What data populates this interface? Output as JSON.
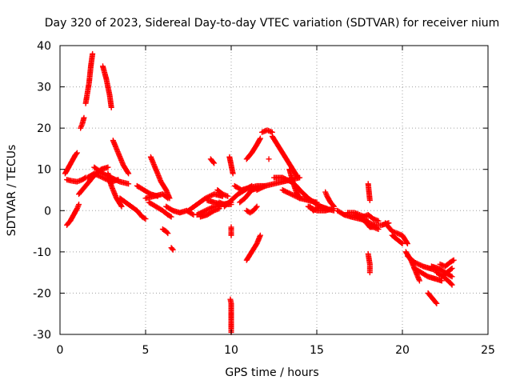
{
  "chart_data": {
    "type": "scatter",
    "title": "Day 320 of 2023, Sidereal Day-to-day VTEC variation (SDTVAR) for receiver nium",
    "xlabel": "GPS time / hours",
    "ylabel": "SDTVAR / TECUs",
    "xlim": [
      0,
      25
    ],
    "ylim": [
      -30,
      40
    ],
    "xticks": [
      0,
      5,
      10,
      15,
      20,
      25
    ],
    "yticks": [
      -30,
      -20,
      -10,
      0,
      10,
      20,
      30,
      40
    ],
    "grid": true,
    "marker": "+",
    "color": "#ff0000",
    "series": [
      {
        "name": "nium",
        "tracks": [
          [
            [
              0.4,
              -3.5
            ],
            [
              0.6,
              -2.5
            ],
            [
              0.8,
              -1
            ],
            [
              1.0,
              0.5
            ],
            [
              1.1,
              1.5
            ]
          ],
          [
            [
              0.3,
              9
            ],
            [
              0.5,
              10.5
            ],
            [
              0.7,
              12
            ],
            [
              0.9,
              13.5
            ],
            [
              1.0,
              14
            ]
          ],
          [
            [
              0.4,
              7.5
            ],
            [
              0.7,
              7.2
            ],
            [
              1.0,
              7
            ],
            [
              1.3,
              7.5
            ],
            [
              1.5,
              8
            ]
          ],
          [
            [
              1.1,
              4
            ],
            [
              1.4,
              5.5
            ],
            [
              1.7,
              7
            ],
            [
              2.0,
              8.5
            ],
            [
              2.4,
              10
            ],
            [
              2.8,
              10.5
            ]
          ],
          [
            [
              1.6,
              8
            ],
            [
              2.0,
              9
            ],
            [
              2.5,
              8
            ],
            [
              3.0,
              7
            ],
            [
              3.4,
              7.5
            ]
          ],
          [
            [
              1.2,
              20
            ],
            [
              1.3,
              21
            ],
            [
              1.4,
              22.5
            ]
          ],
          [
            [
              1.5,
              26
            ],
            [
              1.7,
              31
            ],
            [
              1.8,
              35
            ],
            [
              1.9,
              38
            ]
          ],
          [
            [
              2.5,
              35
            ],
            [
              2.7,
              32
            ],
            [
              2.9,
              28
            ],
            [
              3.0,
              25
            ]
          ],
          [
            [
              2.0,
              10.5
            ],
            [
              2.5,
              9
            ],
            [
              3.0,
              8
            ],
            [
              3.5,
              7
            ],
            [
              4.0,
              6.5
            ]
          ],
          [
            [
              2.8,
              9
            ],
            [
              3.0,
              6
            ],
            [
              3.3,
              3
            ],
            [
              3.6,
              1
            ]
          ],
          [
            [
              3.1,
              17
            ],
            [
              3.4,
              14
            ],
            [
              3.7,
              11
            ],
            [
              4.0,
              9
            ]
          ],
          [
            [
              3.5,
              3
            ],
            [
              4.0,
              1.5
            ],
            [
              4.5,
              0
            ],
            [
              4.8,
              -1.5
            ],
            [
              5.0,
              -2
            ]
          ],
          [
            [
              4.5,
              6
            ],
            [
              4.9,
              5
            ],
            [
              5.3,
              4
            ],
            [
              5.7,
              3.5
            ]
          ],
          [
            [
              5.0,
              3
            ],
            [
              5.5,
              3.5
            ],
            [
              6.0,
              4
            ],
            [
              6.3,
              3
            ]
          ],
          [
            [
              5.2,
              2
            ],
            [
              5.6,
              1
            ],
            [
              6.0,
              0
            ],
            [
              6.3,
              -1
            ],
            [
              6.5,
              -1.5
            ]
          ],
          [
            [
              5.3,
              13
            ],
            [
              5.6,
              10
            ],
            [
              5.9,
              7
            ],
            [
              6.2,
              5
            ],
            [
              6.4,
              3
            ]
          ],
          [
            [
              6.0,
              -4.5
            ],
            [
              6.2,
              -5
            ],
            [
              6.3,
              -5.5
            ]
          ],
          [
            [
              6.5,
              -9
            ],
            [
              6.6,
              -9.5
            ]
          ],
          [
            [
              6.2,
              1
            ],
            [
              6.6,
              0
            ],
            [
              7.0,
              -0.5
            ],
            [
              7.4,
              0
            ],
            [
              7.8,
              -1
            ]
          ],
          [
            [
              7.5,
              0
            ],
            [
              8.0,
              1.5
            ],
            [
              8.5,
              3
            ],
            [
              9.0,
              4
            ],
            [
              9.5,
              3.5
            ]
          ],
          [
            [
              8.0,
              -1
            ],
            [
              8.5,
              0
            ],
            [
              9.0,
              1
            ],
            [
              9.4,
              1
            ]
          ],
          [
            [
              8.2,
              -1.5
            ],
            [
              8.6,
              -1
            ],
            [
              9.0,
              0
            ],
            [
              9.3,
              0.5
            ]
          ],
          [
            [
              8.6,
              2.5
            ],
            [
              9.0,
              2
            ],
            [
              9.5,
              1.5
            ],
            [
              10.0,
              2
            ]
          ],
          [
            [
              8.8,
              12.5
            ],
            [
              8.9,
              12
            ],
            [
              9.0,
              11.5
            ]
          ],
          [
            [
              9.2,
              5
            ],
            [
              9.5,
              4
            ],
            [
              9.8,
              3.5
            ]
          ],
          [
            [
              9.3,
              2
            ],
            [
              9.6,
              1.5
            ],
            [
              10.0,
              1.5
            ]
          ],
          [
            [
              9.6,
              1
            ],
            [
              10.0,
              2.5
            ],
            [
              10.4,
              4
            ],
            [
              10.8,
              5
            ],
            [
              11.2,
              6
            ]
          ],
          [
            [
              9.9,
              13
            ],
            [
              10.0,
              11
            ],
            [
              10.1,
              9
            ]
          ],
          [
            [
              10.0,
              -6
            ],
            [
              10.0,
              -4
            ]
          ],
          [
            [
              9.95,
              -21.5
            ],
            [
              10.0,
              -22.5
            ],
            [
              10.0,
              -27
            ],
            [
              10.0,
              -28.5
            ],
            [
              10.0,
              -29.5
            ]
          ],
          [
            [
              10.2,
              6
            ],
            [
              10.6,
              5
            ],
            [
              11.0,
              5.5
            ],
            [
              11.5,
              6
            ],
            [
              12.0,
              6
            ]
          ],
          [
            [
              10.5,
              2
            ],
            [
              10.8,
              3
            ],
            [
              11.2,
              5
            ],
            [
              11.6,
              5.5
            ]
          ],
          [
            [
              10.9,
              0
            ],
            [
              11.1,
              -0.5
            ],
            [
              11.3,
              0
            ],
            [
              11.5,
              1
            ]
          ],
          [
            [
              10.9,
              -12
            ],
            [
              11.2,
              -10
            ],
            [
              11.5,
              -8
            ],
            [
              11.7,
              -6
            ]
          ],
          [
            [
              10.9,
              12.5
            ],
            [
              11.2,
              14
            ],
            [
              11.5,
              16
            ],
            [
              11.7,
              17.5
            ]
          ],
          [
            [
              11.8,
              19
            ],
            [
              12.1,
              19.5
            ],
            [
              12.4,
              19
            ]
          ],
          [
            [
              12.2,
              12.5
            ]
          ],
          [
            [
              12.4,
              18
            ],
            [
              12.7,
              16
            ],
            [
              13.0,
              14
            ],
            [
              13.3,
              12
            ],
            [
              13.6,
              10
            ],
            [
              13.9,
              8
            ]
          ],
          [
            [
              11.5,
              5
            ],
            [
              12.0,
              6
            ],
            [
              12.5,
              6.5
            ],
            [
              13.0,
              7
            ],
            [
              13.5,
              7.5
            ],
            [
              14.0,
              8
            ]
          ],
          [
            [
              12.5,
              8
            ],
            [
              13.0,
              8
            ],
            [
              13.5,
              7
            ],
            [
              13.8,
              6
            ],
            [
              14.0,
              5
            ]
          ],
          [
            [
              13.4,
              10
            ],
            [
              13.6,
              7
            ],
            [
              13.8,
              4.5
            ],
            [
              14.0,
              3
            ]
          ],
          [
            [
              13.0,
              5
            ],
            [
              13.5,
              4
            ],
            [
              14.0,
              3
            ],
            [
              14.5,
              2.5
            ],
            [
              15.0,
              2
            ]
          ],
          [
            [
              14.0,
              5
            ],
            [
              14.5,
              3
            ],
            [
              15.0,
              1.5
            ],
            [
              15.5,
              0.5
            ],
            [
              16.0,
              0
            ]
          ],
          [
            [
              14.5,
              1
            ],
            [
              15.0,
              0
            ],
            [
              15.5,
              0
            ],
            [
              16.0,
              0.5
            ]
          ],
          [
            [
              14.6,
              1
            ],
            [
              14.8,
              0
            ],
            [
              15.2,
              1
            ],
            [
              15.6,
              0.5
            ]
          ],
          [
            [
              15.5,
              4.5
            ],
            [
              15.6,
              3.5
            ],
            [
              15.8,
              2
            ],
            [
              16.0,
              1
            ]
          ],
          [
            [
              16.2,
              0
            ],
            [
              16.6,
              -1
            ],
            [
              17.0,
              -1.5
            ],
            [
              17.5,
              -2
            ],
            [
              18.0,
              -2.5
            ]
          ],
          [
            [
              16.8,
              -0.5
            ],
            [
              17.2,
              -0.5
            ],
            [
              17.5,
              -1
            ],
            [
              17.8,
              -1.5
            ]
          ],
          [
            [
              17.2,
              -1
            ],
            [
              17.6,
              -2
            ],
            [
              18.0,
              -3
            ],
            [
              18.4,
              -3.5
            ],
            [
              18.8,
              -3.5
            ],
            [
              19.2,
              -3
            ]
          ],
          [
            [
              17.7,
              -1.5
            ],
            [
              18.0,
              -1
            ],
            [
              18.3,
              -2
            ],
            [
              18.6,
              -2.5
            ]
          ],
          [
            [
              17.9,
              -3
            ],
            [
              18.1,
              -4
            ],
            [
              18.3,
              -4
            ],
            [
              18.6,
              -4.5
            ]
          ],
          [
            [
              18.0,
              6.5
            ],
            [
              18.1,
              2.5
            ]
          ],
          [
            [
              18.0,
              -10.5
            ],
            [
              18.1,
              -13
            ],
            [
              18.1,
              -15
            ]
          ],
          [
            [
              19.0,
              -3
            ],
            [
              19.4,
              -5
            ],
            [
              19.7,
              -5.5
            ],
            [
              20.0,
              -6
            ],
            [
              20.3,
              -8
            ]
          ],
          [
            [
              19.4,
              -6
            ],
            [
              19.7,
              -7
            ],
            [
              20.0,
              -8
            ]
          ],
          [
            [
              20.2,
              -10
            ],
            [
              20.5,
              -12
            ],
            [
              20.8,
              -15
            ],
            [
              21.0,
              -17
            ]
          ],
          [
            [
              20.3,
              -11
            ],
            [
              20.7,
              -12.5
            ],
            [
              21.2,
              -13.5
            ],
            [
              21.6,
              -14
            ],
            [
              22.0,
              -14.5
            ]
          ],
          [
            [
              20.7,
              -14
            ],
            [
              21.1,
              -15
            ],
            [
              21.5,
              -16
            ],
            [
              21.9,
              -16.5
            ],
            [
              22.3,
              -17
            ]
          ],
          [
            [
              21.5,
              -20
            ],
            [
              21.7,
              -21
            ],
            [
              22.0,
              -22.5
            ]
          ],
          [
            [
              21.7,
              -13.5
            ],
            [
              22.1,
              -14
            ],
            [
              22.5,
              -15
            ],
            [
              22.9,
              -16
            ]
          ],
          [
            [
              22.0,
              -15
            ],
            [
              22.4,
              -16
            ],
            [
              22.8,
              -17.5
            ],
            [
              22.9,
              -18
            ]
          ],
          [
            [
              22.2,
              -13
            ],
            [
              22.5,
              -13.5
            ],
            [
              22.8,
              -12.5
            ],
            [
              23.0,
              -12
            ]
          ],
          [
            [
              22.3,
              -16
            ],
            [
              22.6,
              -15
            ],
            [
              22.9,
              -14
            ]
          ]
        ]
      }
    ]
  }
}
